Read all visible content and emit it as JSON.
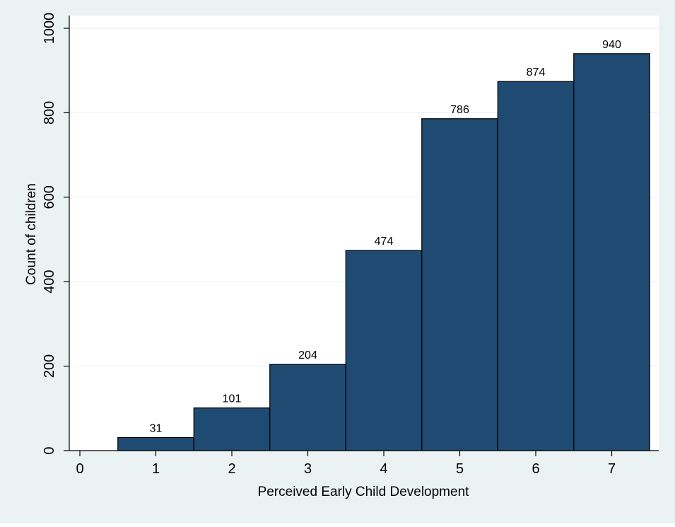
{
  "chart_data": {
    "type": "bar",
    "categories": [
      "1",
      "2",
      "3",
      "4",
      "5",
      "6",
      "7"
    ],
    "values": [
      31,
      101,
      204,
      474,
      786,
      874,
      940
    ],
    "data_labels": [
      "31",
      "101",
      "204",
      "474",
      "786",
      "874",
      "940"
    ],
    "xlabel": "Perceived Early Child Development",
    "ylabel": "Count of children",
    "x_ticks": [
      "0",
      "1",
      "2",
      "3",
      "4",
      "5",
      "6",
      "7"
    ],
    "y_ticks": [
      "0",
      "200",
      "400",
      "600",
      "800",
      "1000"
    ],
    "xlim": [
      0,
      7.5
    ],
    "ylim": [
      0,
      1000
    ],
    "grid": true,
    "colors": {
      "bar_fill": "#1f4a72",
      "bar_stroke": "#000000",
      "plot_background": "#ffffff",
      "outer_background": "#eaf2f3",
      "gridline": "#eaf2f3"
    }
  }
}
